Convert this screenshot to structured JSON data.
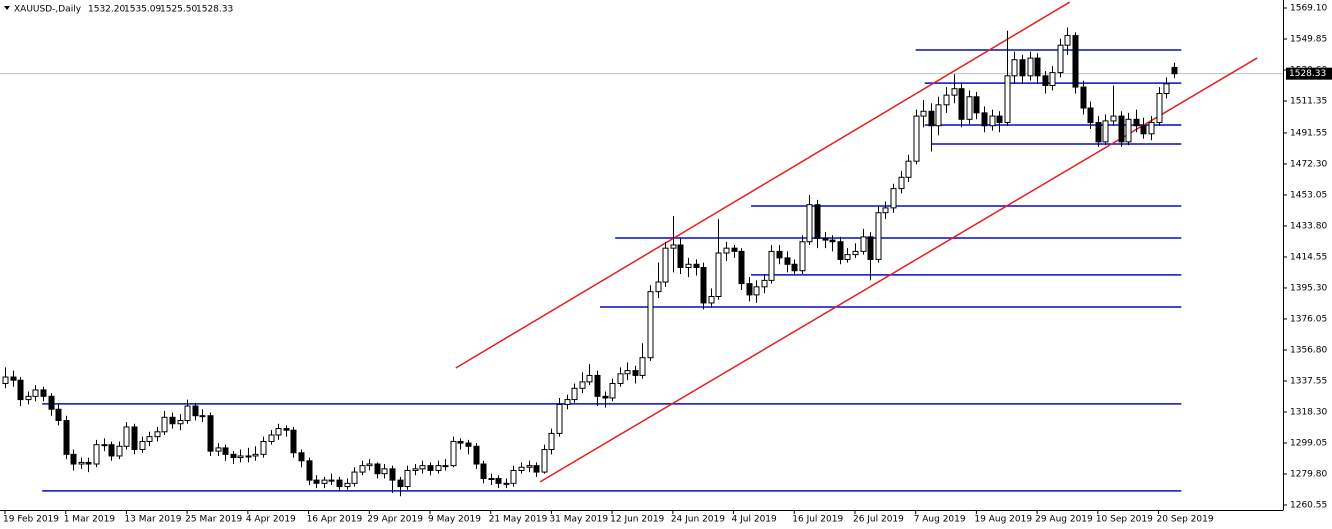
{
  "chart_data": {
    "type": "candlestick",
    "title": "XAUUSD-,Daily",
    "header_values": [
      "1532.20",
      "1535.09",
      "1525.50",
      "1528.33"
    ],
    "last_price": 1528.33,
    "ylim": [
      1257.45,
      1574.07
    ],
    "yticks": [
      {
        "value": 1569.1,
        "label": "1569.10"
      },
      1549.85,
      {
        "value": 1530.6,
        "label": "1530.60"
      },
      1511.35,
      1491.55,
      {
        "value": 1472.3,
        "label": "1472.30"
      },
      1453.05,
      {
        "value": 1433.8,
        "label": "1433.80"
      },
      1414.55,
      {
        "value": 1395.3,
        "label": "1395.30"
      },
      1376.05,
      {
        "value": 1356.8,
        "label": "1356.80"
      },
      1337.55,
      {
        "value": 1318.3,
        "label": "1318.30"
      },
      1299.05,
      {
        "value": 1279.8,
        "label": "1279.80"
      },
      1260.55
    ],
    "xlim": [
      -0.66,
      168.4
    ],
    "xticks": [
      {
        "value": 0,
        "label": "19 Feb 2019"
      },
      {
        "value": 8,
        "label": "1 Mar 2019"
      },
      {
        "value": 16,
        "label": "13 Mar 2019"
      },
      {
        "value": 24,
        "label": "25 Mar 2019"
      },
      {
        "value": 32,
        "label": "4 Apr 2019"
      },
      {
        "value": 40,
        "label": "16 Apr 2019"
      },
      {
        "value": 48,
        "label": "29 Apr 2019"
      },
      {
        "value": 56,
        "label": "9 May 2019"
      },
      {
        "value": 64,
        "label": "21 May 2019"
      },
      {
        "value": 72,
        "label": "31 May 2019"
      },
      {
        "value": 80,
        "label": "12 Jun 2019"
      },
      {
        "value": 88,
        "label": "24 Jun 2019"
      },
      {
        "value": 96,
        "label": "4 Jul 2019"
      },
      {
        "value": 104,
        "label": "16 Jul 2019"
      },
      {
        "value": 112,
        "label": "26 Jul 2019"
      },
      {
        "value": 120,
        "label": "7 Aug 2019"
      },
      {
        "value": 128,
        "label": "19 Aug 2019"
      },
      {
        "value": 136,
        "label": "29 Aug 2019"
      },
      {
        "value": 144,
        "label": "10 Sep 2019"
      },
      {
        "value": 152,
        "label": "20 Sep 2019"
      }
    ],
    "bull_color": "#ffffff",
    "bear_color": "#000000",
    "hline_color": "#0a0ac8",
    "channel_color": "#e61e1e",
    "horizontal_lines": [
      {
        "price": 1543.0,
        "from": 120,
        "to": 155
      },
      {
        "price": 1522.5,
        "from": 121.2,
        "to": 155
      },
      {
        "price": 1496.5,
        "from": 121.2,
        "to": 155
      },
      {
        "price": 1484.7,
        "from": 122.1,
        "to": 155
      },
      {
        "price": 1446.2,
        "from": 98.3,
        "to": 155
      },
      {
        "price": 1426.3,
        "from": 80.4,
        "to": 155
      },
      {
        "price": 1403.4,
        "from": 98.3,
        "to": 155
      },
      {
        "price": 1383.5,
        "from": 78.4,
        "to": 155
      },
      {
        "price": 1323.3,
        "from": 4.9,
        "to": 155
      },
      {
        "price": 1269.3,
        "from": 4.9,
        "to": 155
      }
    ],
    "channel_lines": [
      {
        "from": 59.4,
        "from_price": 1345.6,
        "to": 140.3,
        "to_price": 1572.8
      },
      {
        "from": 70.5,
        "from_price": 1274.9,
        "to": 165,
        "to_price": 1538.1
      }
    ],
    "candles": [
      [
        1336,
        1346,
        1333,
        1340
      ],
      [
        1340,
        1344,
        1334,
        1338
      ],
      [
        1338,
        1340,
        1322,
        1326
      ],
      [
        1326,
        1331,
        1323,
        1328
      ],
      [
        1328,
        1335,
        1325,
        1332
      ],
      [
        1332,
        1334,
        1325,
        1328
      ],
      [
        1328,
        1330,
        1316,
        1320
      ],
      [
        1320,
        1323,
        1310,
        1313
      ],
      [
        1313,
        1316,
        1289,
        1292
      ],
      [
        1292,
        1295,
        1282,
        1286
      ],
      [
        1286,
        1290,
        1283,
        1287
      ],
      [
        1287,
        1290,
        1281,
        1286
      ],
      [
        1286,
        1301,
        1284,
        1298
      ],
      [
        1298,
        1302,
        1294,
        1298
      ],
      [
        1298,
        1300,
        1288,
        1291
      ],
      [
        1291,
        1300,
        1289,
        1297
      ],
      [
        1297,
        1312,
        1295,
        1309
      ],
      [
        1309,
        1311,
        1292,
        1295
      ],
      [
        1295,
        1303,
        1293,
        1300
      ],
      [
        1300,
        1306,
        1297,
        1303
      ],
      [
        1303,
        1309,
        1300,
        1306
      ],
      [
        1306,
        1319,
        1304,
        1315
      ],
      [
        1315,
        1318,
        1308,
        1311
      ],
      [
        1311,
        1317,
        1307,
        1313
      ],
      [
        1313,
        1326,
        1311,
        1322
      ],
      [
        1322,
        1324,
        1313,
        1316
      ],
      [
        1316,
        1320,
        1312,
        1316
      ],
      [
        1316,
        1318,
        1291,
        1294
      ],
      [
        1294,
        1299,
        1291,
        1296
      ],
      [
        1296,
        1298,
        1288,
        1292
      ],
      [
        1292,
        1294,
        1286,
        1290
      ],
      [
        1290,
        1295,
        1287,
        1291
      ],
      [
        1291,
        1296,
        1287,
        1291
      ],
      [
        1291,
        1297,
        1288,
        1292
      ],
      [
        1292,
        1303,
        1290,
        1300
      ],
      [
        1300,
        1307,
        1298,
        1304
      ],
      [
        1304,
        1311,
        1301,
        1308
      ],
      [
        1308,
        1310,
        1303,
        1307
      ],
      [
        1307,
        1309,
        1290,
        1293
      ],
      [
        1293,
        1295,
        1284,
        1288
      ],
      [
        1288,
        1290,
        1273,
        1276
      ],
      [
        1276,
        1279,
        1271,
        1274
      ],
      [
        1274,
        1278,
        1271,
        1276
      ],
      [
        1276,
        1280,
        1273,
        1276
      ],
      [
        1276,
        1278,
        1269,
        1272
      ],
      [
        1272,
        1277,
        1270,
        1274
      ],
      [
        1274,
        1284,
        1272,
        1281
      ],
      [
        1281,
        1288,
        1279,
        1285
      ],
      [
        1285,
        1289,
        1282,
        1286
      ],
      [
        1286,
        1287,
        1277,
        1280
      ],
      [
        1280,
        1286,
        1277,
        1283
      ],
      [
        1283,
        1285,
        1268,
        1276
      ],
      [
        1276,
        1278,
        1266,
        1272
      ],
      [
        1272,
        1285,
        1270,
        1282
      ],
      [
        1282,
        1286,
        1279,
        1283
      ],
      [
        1283,
        1288,
        1280,
        1285
      ],
      [
        1285,
        1287,
        1279,
        1282
      ],
      [
        1282,
        1288,
        1280,
        1285
      ],
      [
        1285,
        1289,
        1282,
        1285
      ],
      [
        1285,
        1303,
        1284,
        1300
      ],
      [
        1300,
        1302,
        1295,
        1299
      ],
      [
        1299,
        1301,
        1292,
        1297
      ],
      [
        1297,
        1299,
        1283,
        1286
      ],
      [
        1286,
        1288,
        1274,
        1277
      ],
      [
        1277,
        1280,
        1273,
        1277
      ],
      [
        1277,
        1279,
        1271,
        1274
      ],
      [
        1274,
        1277,
        1271,
        1274
      ],
      [
        1274,
        1285,
        1272,
        1282
      ],
      [
        1282,
        1287,
        1280,
        1284
      ],
      [
        1284,
        1288,
        1281,
        1285
      ],
      [
        1285,
        1287,
        1278,
        1281
      ],
      [
        1281,
        1298,
        1280,
        1295
      ],
      [
        1295,
        1308,
        1292,
        1305
      ],
      [
        1305,
        1327,
        1303,
        1323
      ],
      [
        1323,
        1329,
        1320,
        1326
      ],
      [
        1326,
        1336,
        1324,
        1333
      ],
      [
        1333,
        1343,
        1330,
        1337
      ],
      [
        1337,
        1348,
        1335,
        1341
      ],
      [
        1341,
        1344,
        1322,
        1328
      ],
      [
        1328,
        1331,
        1321,
        1327
      ],
      [
        1327,
        1339,
        1325,
        1336
      ],
      [
        1336,
        1346,
        1334,
        1342
      ],
      [
        1342,
        1349,
        1338,
        1344
      ],
      [
        1344,
        1347,
        1336,
        1341
      ],
      [
        1341,
        1361,
        1339,
        1352
      ],
      [
        1352,
        1397,
        1350,
        1393
      ],
      [
        1393,
        1411,
        1389,
        1399
      ],
      [
        1399,
        1424,
        1396,
        1420
      ],
      [
        1420,
        1440,
        1405,
        1422
      ],
      [
        1422,
        1426,
        1404,
        1408
      ],
      [
        1408,
        1414,
        1402,
        1410
      ],
      [
        1410,
        1413,
        1403,
        1408
      ],
      [
        1408,
        1411,
        1382,
        1386
      ],
      [
        1386,
        1395,
        1383,
        1390
      ],
      [
        1390,
        1438,
        1388,
        1417
      ],
      [
        1417,
        1424,
        1412,
        1420
      ],
      [
        1420,
        1422,
        1414,
        1418
      ],
      [
        1418,
        1420,
        1394,
        1398
      ],
      [
        1398,
        1402,
        1387,
        1391
      ],
      [
        1391,
        1400,
        1386,
        1396
      ],
      [
        1396,
        1404,
        1392,
        1400
      ],
      [
        1400,
        1422,
        1398,
        1418
      ],
      [
        1418,
        1422,
        1410,
        1414
      ],
      [
        1414,
        1418,
        1405,
        1410
      ],
      [
        1410,
        1413,
        1403,
        1406
      ],
      [
        1406,
        1428,
        1404,
        1424
      ],
      [
        1424,
        1453,
        1422,
        1447
      ],
      [
        1447,
        1450,
        1420,
        1426
      ],
      [
        1426,
        1430,
        1420,
        1425
      ],
      [
        1425,
        1428,
        1418,
        1424
      ],
      [
        1424,
        1427,
        1410,
        1413
      ],
      [
        1413,
        1420,
        1411,
        1416
      ],
      [
        1416,
        1423,
        1414,
        1418
      ],
      [
        1418,
        1432,
        1416,
        1427
      ],
      [
        1427,
        1430,
        1400,
        1413
      ],
      [
        1413,
        1446,
        1411,
        1442
      ],
      [
        1442,
        1449,
        1438,
        1445
      ],
      [
        1445,
        1460,
        1442,
        1457
      ],
      [
        1457,
        1468,
        1454,
        1464
      ],
      [
        1464,
        1478,
        1461,
        1474
      ],
      [
        1474,
        1506,
        1472,
        1502
      ],
      [
        1502,
        1512,
        1495,
        1505
      ],
      [
        1505,
        1510,
        1480,
        1496
      ],
      [
        1496,
        1514,
        1490,
        1509
      ],
      [
        1509,
        1520,
        1504,
        1515
      ],
      [
        1515,
        1528,
        1510,
        1519
      ],
      [
        1519,
        1523,
        1495,
        1500
      ],
      [
        1500,
        1518,
        1497,
        1514
      ],
      [
        1514,
        1517,
        1500,
        1504
      ],
      [
        1504,
        1508,
        1492,
        1496
      ],
      [
        1496,
        1506,
        1493,
        1502
      ],
      [
        1502,
        1505,
        1492,
        1498
      ],
      [
        1498,
        1555,
        1496,
        1527
      ],
      [
        1527,
        1542,
        1522,
        1537
      ],
      [
        1537,
        1540,
        1522,
        1527
      ],
      [
        1527,
        1542,
        1524,
        1538
      ],
      [
        1538,
        1541,
        1522,
        1527
      ],
      [
        1527,
        1530,
        1516,
        1521
      ],
      [
        1521,
        1533,
        1518,
        1529
      ],
      [
        1529,
        1550,
        1526,
        1546
      ],
      [
        1546,
        1557,
        1540,
        1552
      ],
      [
        1552,
        1554,
        1516,
        1520
      ],
      [
        1520,
        1524,
        1503,
        1507
      ],
      [
        1507,
        1511,
        1494,
        1498
      ],
      [
        1498,
        1502,
        1483,
        1486
      ],
      [
        1486,
        1503,
        1484,
        1499
      ],
      [
        1499,
        1521,
        1496,
        1502
      ],
      [
        1502,
        1505,
        1483,
        1486
      ],
      [
        1486,
        1504,
        1484,
        1500
      ],
      [
        1500,
        1506,
        1492,
        1496
      ],
      [
        1496,
        1501,
        1488,
        1491
      ],
      [
        1491,
        1502,
        1487,
        1498
      ],
      [
        1498,
        1520,
        1496,
        1516
      ],
      [
        1516,
        1526,
        1513,
        1522
      ],
      [
        1532.2,
        1535.09,
        1525.5,
        1528.33
      ]
    ]
  }
}
